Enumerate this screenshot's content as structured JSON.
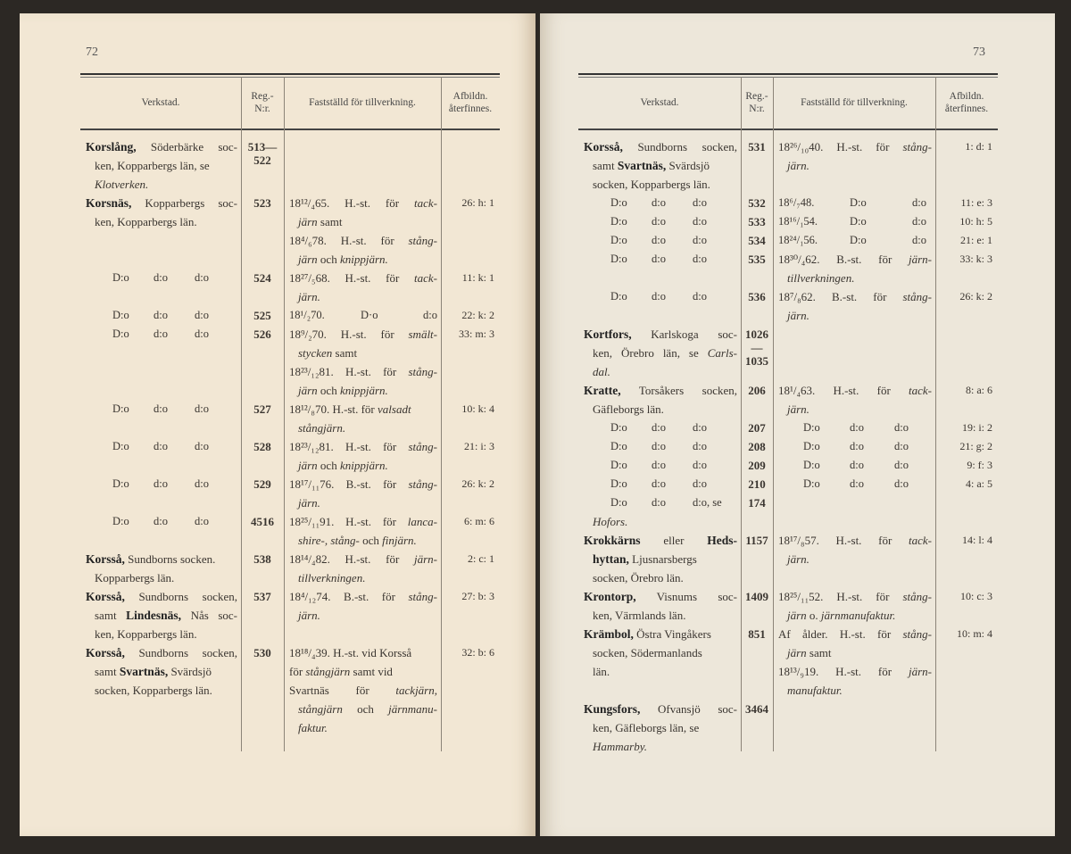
{
  "left": {
    "page_number": "72",
    "headers": [
      "Verkstad.",
      "Reg.-\nN:r.",
      "Fastställd för tillverkning.",
      "Afbildn.\nåterfinnes."
    ],
    "rows": [
      {
        "name": [
          [
            [
              "b",
              "Korslång,"
            ],
            [
              "",
              "Söderbärke soc-"
            ]
          ],
          [
            [
              "",
              "ken, Kopparbergs län, se"
            ]
          ],
          [
            [
              "i",
              "Klotverken."
            ]
          ]
        ],
        "reg": [
          "513—",
          "522"
        ],
        "fast": [],
        "ref": ""
      },
      {
        "name": [
          [
            [
              "b",
              "Korsnäs,"
            ],
            [
              "",
              "Kopparbergs soc-"
            ]
          ],
          [
            [
              "",
              "ken, Kopparbergs län."
            ]
          ]
        ],
        "reg": [
          "523"
        ],
        "fast": [
          [
            [
              "",
              "18¹²/₄65. H.-st. för "
            ],
            [
              "i",
              "tack-"
            ]
          ],
          [
            [
              "i",
              "järn"
            ],
            [
              "",
              " samt"
            ]
          ],
          [
            [
              "",
              "18⁴/₆78. H.-st. för "
            ],
            [
              "i",
              "stång-"
            ]
          ],
          [
            [
              "i",
              "järn"
            ],
            [
              "",
              " och "
            ],
            [
              "i",
              "knippjärn."
            ]
          ]
        ],
        "ref": "26: h: 1"
      },
      {
        "name": [
          {
            "ditto": [
              "D:o",
              "d:o",
              "d:o"
            ]
          }
        ],
        "reg": [
          "524"
        ],
        "fast": [
          [
            [
              "",
              "18²⁷/₅68. H.-st. för "
            ],
            [
              "i",
              "tack-"
            ]
          ],
          [
            [
              "i",
              "järn."
            ]
          ]
        ],
        "ref": "11: k: 1"
      },
      {
        "name": [
          {
            "ditto": [
              "D:o",
              "d:o",
              "d:o"
            ]
          }
        ],
        "reg": [
          "525"
        ],
        "fast": [
          {
            "ditto": [
              "18¹/₂70.",
              "D·o",
              "d:o"
            ]
          }
        ],
        "ref": "22: k: 2"
      },
      {
        "name": [
          {
            "ditto": [
              "D:o",
              "d:o",
              "d:o"
            ]
          }
        ],
        "reg": [
          "526"
        ],
        "fast": [
          [
            [
              "",
              "18⁹/₂70. H.-st. för "
            ],
            [
              "i",
              "smält-"
            ]
          ],
          [
            [
              "i",
              "stycken"
            ],
            [
              "",
              " samt"
            ]
          ],
          [
            [
              "",
              "18²³/₁₂81. H.-st. för "
            ],
            [
              "i",
              "stång-"
            ]
          ],
          [
            [
              "i",
              "järn"
            ],
            [
              "",
              " och "
            ],
            [
              "i",
              "knippjärn."
            ]
          ]
        ],
        "ref": "33: m: 3"
      },
      {
        "name": [
          {
            "ditto": [
              "D:o",
              "d:o",
              "d:o"
            ]
          }
        ],
        "reg": [
          "527"
        ],
        "fast": [
          [
            [
              "",
              "18¹²/₈70. H.-st. för "
            ],
            [
              "i",
              "valsadt"
            ]
          ],
          [
            [
              "i",
              "stångjärn."
            ]
          ]
        ],
        "ref": "10: k: 4"
      },
      {
        "name": [
          {
            "ditto": [
              "D:o",
              "d:o",
              "d:o"
            ]
          }
        ],
        "reg": [
          "528"
        ],
        "fast": [
          [
            [
              "",
              "18²³/₁₂81. H.-st. för "
            ],
            [
              "i",
              "stång-"
            ]
          ],
          [
            [
              "i",
              "järn"
            ],
            [
              "",
              " och "
            ],
            [
              "i",
              "knippjärn."
            ]
          ]
        ],
        "ref": "21: i: 3"
      },
      {
        "name": [
          {
            "ditto": [
              "D:o",
              "d:o",
              "d:o"
            ]
          }
        ],
        "reg": [
          "529"
        ],
        "fast": [
          [
            [
              "",
              "18¹⁷/₁₁76. B.-st. för "
            ],
            [
              "i",
              "stång-"
            ]
          ],
          [
            [
              "i",
              "järn."
            ]
          ]
        ],
        "ref": "26: k: 2"
      },
      {
        "name": [
          {
            "ditto": [
              "D:o",
              "d:o",
              "d:o"
            ]
          }
        ],
        "reg": [
          "4516"
        ],
        "fast": [
          [
            [
              "",
              "18²⁵/₁₁91. H.-st. för "
            ],
            [
              "i",
              "lanca-"
            ]
          ],
          [
            [
              "i",
              "shire-, stång-"
            ],
            [
              "",
              " och "
            ],
            [
              "i",
              "finjärn."
            ]
          ]
        ],
        "ref": "6: m: 6"
      },
      {
        "name": [
          [
            [
              "b",
              "Korsså,"
            ],
            [
              "",
              "Sundborns socken."
            ]
          ],
          [
            [
              "",
              "Kopparbergs län."
            ]
          ]
        ],
        "reg": [
          "538"
        ],
        "fast": [
          [
            [
              "",
              "18¹⁴/₄82. H.-st. för "
            ],
            [
              "i",
              "järn-"
            ]
          ],
          [
            [
              "i",
              "tillverkningen."
            ]
          ]
        ],
        "ref": "2: c: 1"
      },
      {
        "name": [
          [
            [
              "b",
              "Korsså,"
            ],
            [
              "",
              "Sundborns socken,"
            ]
          ],
          [
            [
              "",
              "samt "
            ],
            [
              "b",
              "Lindesnäs,"
            ],
            [
              "",
              " Nås soc-"
            ]
          ],
          [
            [
              "",
              "ken, Kopparbergs län."
            ]
          ]
        ],
        "reg": [
          "537"
        ],
        "fast": [
          [
            [
              "",
              "18⁴/₁₂74. B.-st. för "
            ],
            [
              "i",
              "stång-"
            ]
          ],
          [
            [
              "i",
              "järn."
            ]
          ]
        ],
        "ref": "27: b: 3"
      },
      {
        "name": [
          [
            [
              "b",
              "Korsså,"
            ],
            [
              "",
              "Sundborns socken,"
            ]
          ],
          [
            [
              "",
              "samt "
            ],
            [
              "b",
              "Svartnäs,"
            ],
            [
              "",
              " Svärdsjö"
            ]
          ],
          [
            [
              "",
              "socken, Kopparbergs län."
            ]
          ]
        ],
        "reg": [
          "530"
        ],
        "fast": [
          [
            [
              "",
              "18¹⁸/₄39. H.-st. vid Korsså"
            ]
          ],
          [
            [
              "",
              "för "
            ],
            [
              "i",
              "stångjärn"
            ],
            [
              "",
              " samt vid"
            ]
          ],
          [
            [
              "",
              "Svartnäs för "
            ],
            [
              "i",
              "tackjärn,"
            ]
          ],
          [
            [
              "i",
              "stångjärn"
            ],
            [
              "",
              " och "
            ],
            [
              "i",
              "järnmanu-"
            ]
          ],
          [
            [
              "i",
              "faktur."
            ]
          ]
        ],
        "ref": "32: b: 6"
      }
    ]
  },
  "right": {
    "page_number": "73",
    "headers": [
      "Verkstad.",
      "Reg.-\nN:r.",
      "Fastställd för tillverkning.",
      "Afbildn.\nåterfinnes."
    ],
    "rows": [
      {
        "name": [
          [
            [
              "b",
              "Korsså,"
            ],
            [
              "",
              "Sundborns socken,"
            ]
          ],
          [
            [
              "",
              "samt "
            ],
            [
              "b",
              "Svartnäs,"
            ],
            [
              "",
              " Svärdsjö"
            ]
          ],
          [
            [
              "",
              "socken, Kopparbergs län."
            ]
          ]
        ],
        "reg": [
          "531"
        ],
        "fast": [
          [
            [
              "",
              "18²⁶/₁₀40. H.-st. för "
            ],
            [
              "i",
              "stång-"
            ]
          ],
          [
            [
              "i",
              "järn."
            ]
          ]
        ],
        "ref": "1: d: 1"
      },
      {
        "name": [
          {
            "ditto": [
              "D:o",
              "d:o",
              "d:o"
            ]
          }
        ],
        "reg": [
          "532"
        ],
        "fast": [
          {
            "ditto": [
              "18⁶/₇48.",
              "D:o",
              "d:o"
            ]
          }
        ],
        "ref": "11: e: 3"
      },
      {
        "name": [
          {
            "ditto": [
              "D:o",
              "d:o",
              "d:o"
            ]
          }
        ],
        "reg": [
          "533"
        ],
        "fast": [
          {
            "ditto": [
              "18¹⁶/₁54.",
              "D:o",
              "d:o"
            ]
          }
        ],
        "ref": "10: h: 5"
      },
      {
        "name": [
          {
            "ditto": [
              "D:o",
              "d:o",
              "d:o"
            ]
          }
        ],
        "reg": [
          "534"
        ],
        "fast": [
          {
            "ditto": [
              "18²⁴/₁56.",
              "D:o",
              "d:o"
            ]
          }
        ],
        "ref": "21: e: 1"
      },
      {
        "name": [
          {
            "ditto": [
              "D:o",
              "d:o",
              "d:o"
            ]
          }
        ],
        "reg": [
          "535"
        ],
        "fast": [
          [
            [
              "",
              "18³⁰/₄62. B.-st. för "
            ],
            [
              "i",
              "järn-"
            ]
          ],
          [
            [
              "i",
              "tillverkningen."
            ]
          ]
        ],
        "ref": "33: k: 3"
      },
      {
        "name": [
          {
            "ditto": [
              "D:o",
              "d:o",
              "d:o"
            ]
          }
        ],
        "reg": [
          "536"
        ],
        "fast": [
          [
            [
              "",
              "18⁷/₈62. B.-st. för "
            ],
            [
              "i",
              "stång-"
            ]
          ],
          [
            [
              "i",
              "järn."
            ]
          ]
        ],
        "ref": "26: k: 2"
      },
      {
        "name": [
          [
            [
              "b",
              "Kortfors,"
            ],
            [
              "",
              "Karlskoga soc-"
            ]
          ],
          [
            [
              "",
              "ken, Örebro län, se "
            ],
            [
              "i",
              "Carls-"
            ]
          ],
          [
            [
              "i",
              "dal."
            ]
          ]
        ],
        "reg": [
          "1026—",
          "1035"
        ],
        "fast": [],
        "ref": ""
      },
      {
        "name": [
          [
            [
              "b",
              "Kratte,"
            ],
            [
              "",
              "Torsåkers socken,"
            ]
          ],
          [
            [
              "",
              "Gäfleborgs län."
            ]
          ]
        ],
        "reg": [
          "206"
        ],
        "fast": [
          [
            [
              "",
              "18¹/₄63. H.-st. för "
            ],
            [
              "i",
              "tack-"
            ]
          ],
          [
            [
              "i",
              "järn."
            ]
          ]
        ],
        "ref": "8: a: 6"
      },
      {
        "name": [
          {
            "ditto": [
              "D:o",
              "d:o",
              "d:o"
            ]
          }
        ],
        "reg": [
          "207"
        ],
        "fast": [
          {
            "ditto3": [
              "D:o",
              "d:o",
              "d:o"
            ]
          }
        ],
        "ref": "19: i: 2"
      },
      {
        "name": [
          {
            "ditto": [
              "D:o",
              "d:o",
              "d:o"
            ]
          }
        ],
        "reg": [
          "208"
        ],
        "fast": [
          {
            "ditto3": [
              "D:o",
              "d:o",
              "d:o"
            ]
          }
        ],
        "ref": "21: g: 2"
      },
      {
        "name": [
          {
            "ditto": [
              "D:o",
              "d:o",
              "d:o"
            ]
          }
        ],
        "reg": [
          "209"
        ],
        "fast": [
          {
            "ditto3": [
              "D:o",
              "d:o",
              "d:o"
            ]
          }
        ],
        "ref": "9: f: 3"
      },
      {
        "name": [
          {
            "ditto": [
              "D:o",
              "d:o",
              "d:o"
            ]
          }
        ],
        "reg": [
          "210"
        ],
        "fast": [
          {
            "ditto3": [
              "D:o",
              "d:o",
              "d:o"
            ]
          }
        ],
        "ref": "4: a: 5"
      },
      {
        "name": [
          {
            "ditto": [
              "D:o",
              "d:o",
              "d:o, se"
            ]
          },
          [
            [
              "i",
              "Hofors."
            ]
          ]
        ],
        "reg": [
          "174"
        ],
        "fast": [],
        "ref": ""
      },
      {
        "name": [
          [
            [
              "b",
              "Krokkärns"
            ],
            [
              "",
              " eller "
            ],
            [
              "b",
              "Heds-"
            ]
          ],
          [
            [
              "b",
              "hyttan,"
            ],
            [
              "",
              "Ljusnarsbergs"
            ]
          ],
          [
            [
              "",
              "socken, Örebro län."
            ]
          ]
        ],
        "reg": [
          "1157"
        ],
        "fast": [
          [
            [
              "",
              "18¹⁷/₈57. H.-st. för "
            ],
            [
              "i",
              "tack-"
            ]
          ],
          [
            [
              "i",
              "järn."
            ]
          ]
        ],
        "ref": "14: l: 4"
      },
      {
        "name": [
          [
            [
              "b",
              "Krontorp,"
            ],
            [
              "",
              "Visnums soc-"
            ]
          ],
          [
            [
              "",
              "ken, Värmlands län."
            ]
          ]
        ],
        "reg": [
          "1409"
        ],
        "fast": [
          [
            [
              "",
              "18²⁵/₁₁52. H.-st. för "
            ],
            [
              "i",
              "stång-"
            ]
          ],
          [
            [
              "i",
              "järn"
            ],
            [
              "",
              " o. "
            ],
            [
              "i",
              "järnmanufaktur."
            ]
          ]
        ],
        "ref": "10: c: 3"
      },
      {
        "name": [
          [
            [
              "b",
              "Krämbol,"
            ],
            [
              "",
              "Östra Vingåkers"
            ]
          ],
          [
            [
              "",
              "socken, Södermanlands"
            ]
          ],
          [
            [
              "",
              "län."
            ]
          ]
        ],
        "reg": [
          "851"
        ],
        "fast": [
          [
            [
              "",
              "Af ålder. H.-st. för "
            ],
            [
              "i",
              "stång-"
            ]
          ],
          [
            [
              "i",
              "järn"
            ],
            [
              "",
              " samt"
            ]
          ],
          [
            [
              "",
              "18¹³/₉19. H.-st. för "
            ],
            [
              "i",
              "järn-"
            ]
          ],
          [
            [
              "i",
              "manufaktur."
            ]
          ]
        ],
        "ref": "10: m: 4"
      },
      {
        "name": [
          [
            [
              "b",
              "Kungsfors,"
            ],
            [
              "",
              "Ofvansjö soc-"
            ]
          ],
          [
            [
              "",
              "ken, Gäfleborgs län, se"
            ]
          ],
          [
            [
              "i",
              "Hammarby."
            ]
          ]
        ],
        "reg": [
          "3464"
        ],
        "fast": [],
        "ref": ""
      }
    ]
  }
}
